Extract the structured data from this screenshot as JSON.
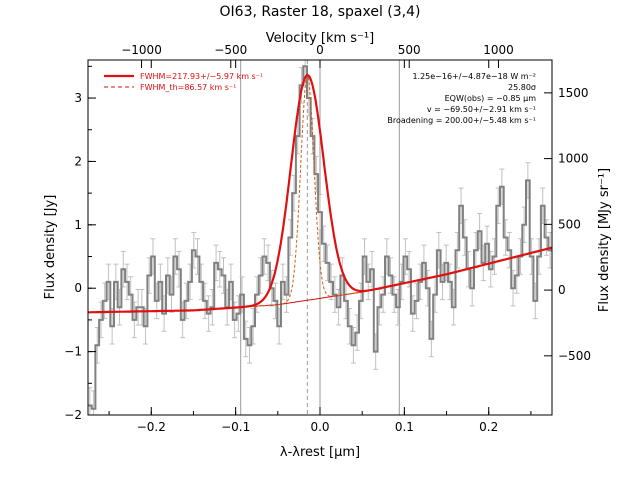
{
  "chart_data": {
    "type": "line",
    "title": "OI63, Raster 18, spaxel (3,4)",
    "xlabel": "λ-λrest [μm]",
    "ylabel": "Flux density [Jy]",
    "y2label": "Flux density [MJy sr⁻¹]",
    "x2label": "Velocity [km s⁻¹]",
    "xlim": [
      -0.275,
      0.275
    ],
    "ylim": [
      -2.0,
      3.6
    ],
    "y2lim": [
      -950,
      1750
    ],
    "x2lim": [
      -1300,
      1300
    ],
    "xticks": [
      -0.2,
      -0.1,
      0.0,
      0.1,
      0.2
    ],
    "xtick_labels": [
      "−0.2",
      "−0.1",
      "0.0",
      "0.1",
      "0.2"
    ],
    "yticks": [
      -2,
      -1,
      0,
      1,
      2,
      3
    ],
    "ytick_labels": [
      "−2",
      "−1",
      "0",
      "1",
      "2",
      "3"
    ],
    "y2ticks": [
      -500,
      0,
      500,
      1000,
      1500
    ],
    "y2tick_labels": [
      "−500",
      "0",
      "500",
      "1000",
      "1500"
    ],
    "x2ticks": [
      -1000,
      -500,
      0,
      500,
      1000
    ],
    "x2tick_labels": [
      "−1000",
      "−500",
      "0",
      "500",
      "1000"
    ],
    "vertical_lines": [
      -0.094,
      0.0,
      0.094
    ],
    "dashed_vertical_line": -0.015,
    "legend": {
      "placement": "top-left",
      "entries": [
        {
          "label": "FWHM=217.93+/−5.97 km s⁻¹",
          "style": "solid",
          "color": "#e01010"
        },
        {
          "label": "FWHM_th=86.57 km s⁻¹",
          "style": "dashed",
          "color": "#e01010"
        }
      ]
    },
    "annotations": [
      "1.25e−16+/−4.87e−18 W m⁻²",
      "25.80σ",
      "EQW(obs) = −0.85 μm",
      "v = −69.50+/−2.91 km s⁻¹",
      "Broadening = 200.00+/−5.48 km s⁻¹"
    ],
    "fit": {
      "center": -0.015,
      "amplitude": 3.55,
      "sigma": 0.0195,
      "sigma_th": 0.0078,
      "baseline_slope_points": [
        [
          -0.275,
          -0.38
        ],
        [
          -0.15,
          -0.35
        ],
        [
          -0.05,
          -0.26
        ],
        [
          0.05,
          -0.06
        ],
        [
          0.15,
          0.22
        ],
        [
          0.275,
          0.64
        ]
      ]
    },
    "series": [
      {
        "x": [
          -0.275,
          -0.2706,
          -0.2662,
          -0.2618,
          -0.2574,
          -0.253,
          -0.2486,
          -0.2442,
          -0.2398,
          -0.2354,
          -0.231,
          -0.2266,
          -0.2222,
          -0.2178,
          -0.2134,
          -0.209,
          -0.2046,
          -0.2002,
          -0.1958,
          -0.1914,
          -0.187,
          -0.1826,
          -0.1782,
          -0.1738,
          -0.1694,
          -0.165,
          -0.1606,
          -0.1562,
          -0.1518,
          -0.1474,
          -0.143,
          -0.1386,
          -0.1342,
          -0.1298,
          -0.1254,
          -0.121,
          -0.1166,
          -0.1122,
          -0.1078,
          -0.1034,
          -0.099,
          -0.0946,
          -0.0902,
          -0.0858,
          -0.0814,
          -0.077,
          -0.0726,
          -0.0682,
          -0.0638,
          -0.0594,
          -0.055,
          -0.0506,
          -0.0462,
          -0.0418,
          -0.0374,
          -0.033,
          -0.0286,
          -0.0242,
          -0.0198,
          -0.0154,
          -0.011,
          -0.0066,
          -0.0022,
          0.0022,
          0.0066,
          0.011,
          0.0154,
          0.0198,
          0.0242,
          0.0286,
          0.033,
          0.0374,
          0.0418,
          0.0462,
          0.0506,
          0.055,
          0.0594,
          0.0638,
          0.0682,
          0.0726,
          0.077,
          0.0814,
          0.0858,
          0.0902,
          0.0946,
          0.099,
          0.1034,
          0.1078,
          0.1122,
          0.1166,
          0.121,
          0.1254,
          0.1298,
          0.1342,
          0.1386,
          0.143,
          0.1474,
          0.1518,
          0.1562,
          0.1606,
          0.165,
          0.1694,
          0.1738,
          0.1782,
          0.1826,
          0.187,
          0.1914,
          0.1958,
          0.2002,
          0.2046,
          0.209,
          0.2134,
          0.2178,
          0.2222,
          0.2266,
          0.231,
          0.2354,
          0.2398,
          0.2442,
          0.2486,
          0.253,
          0.2574,
          0.2618,
          0.2662,
          0.2706
        ],
        "y": [
          -1.85,
          -1.9,
          -0.9,
          -0.5,
          -0.2,
          0.1,
          -0.6,
          0.1,
          -0.3,
          0.3,
          0.1,
          -0.1,
          -0.5,
          -0.3,
          -0.3,
          -0.6,
          0.2,
          0.5,
          -0.2,
          0.1,
          -0.4,
          0.2,
          -0.1,
          0.5,
          0.3,
          -0.5,
          -0.2,
          0.1,
          0.6,
          0.5,
          0.1,
          -0.2,
          -0.4,
          -0.3,
          0.4,
          0.3,
          0.2,
          -0.3,
          0.1,
          -0.5,
          -0.4,
          -0.1,
          -0.8,
          -0.9,
          -0.6,
          -0.1,
          0.2,
          0.5,
          0.4,
          0.0,
          -0.2,
          -0.6,
          0.1,
          -0.1,
          0.8,
          1.5,
          2.4,
          3.2,
          3.5,
          3.0,
          2.4,
          1.8,
          1.2,
          0.7,
          0.4,
          0.1,
          -0.1,
          -0.3,
          0.2,
          -0.2,
          -0.6,
          -0.9,
          -0.7,
          -0.2,
          0.5,
          0.1,
          0.3,
          -1.0,
          -0.3,
          -0.1,
          0.5,
          0.2,
          -0.1,
          -0.3,
          0.1,
          0.5,
          0.3,
          -0.4,
          -0.2,
          0.1,
          0.4,
          0.0,
          -0.8,
          -0.1,
          0.6,
          0.1,
          0.4,
          0.1,
          -0.3,
          0.6,
          1.3,
          0.8,
          0.3,
          0.0,
          0.6,
          0.9,
          0.4,
          0.7,
          0.3,
          0.5,
          1.3,
          1.6,
          0.8,
          0.6,
          0.0,
          0.2,
          0.5,
          1.0,
          1.7,
          0.5,
          -0.2,
          0.5,
          1.3,
          0.8,
          0.6
        ],
        "err": 0.28
      }
    ]
  }
}
